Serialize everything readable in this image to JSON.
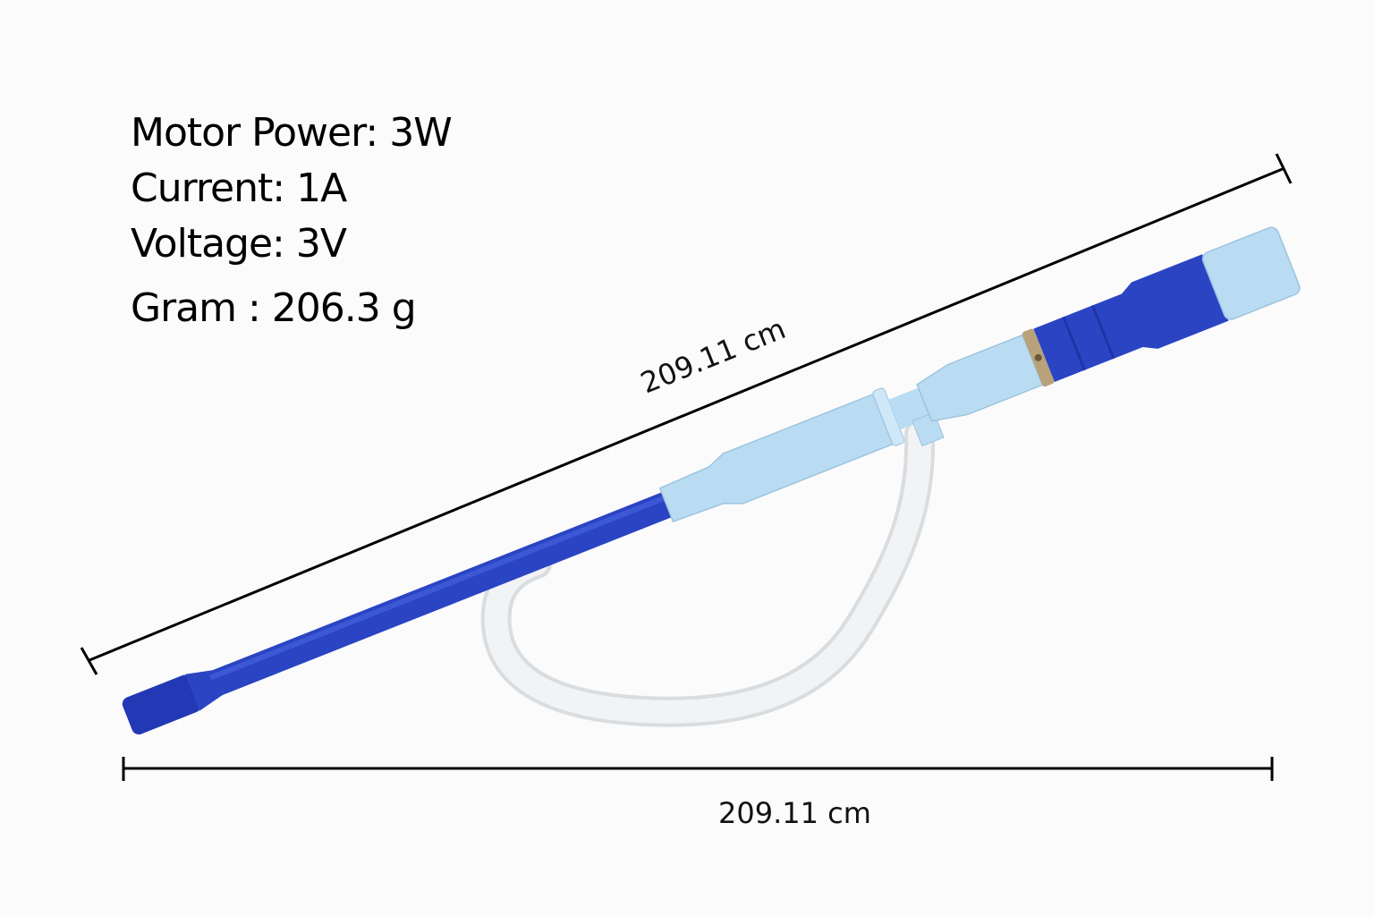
{
  "specs": {
    "motor_power": "Motor Power: 3W",
    "current": "Current: 1A",
    "voltage": "Voltage: 3V",
    "gram": "Gram : 206.3 g"
  },
  "dimensions": {
    "diagonal_label": "209.11 cm",
    "horizontal_label": "209.11 cm"
  },
  "colors": {
    "tube_blue": "#2a44c4",
    "light_blue": "#b9dcf2",
    "hose": "#eef1f3",
    "ring": "#b9a27a"
  }
}
